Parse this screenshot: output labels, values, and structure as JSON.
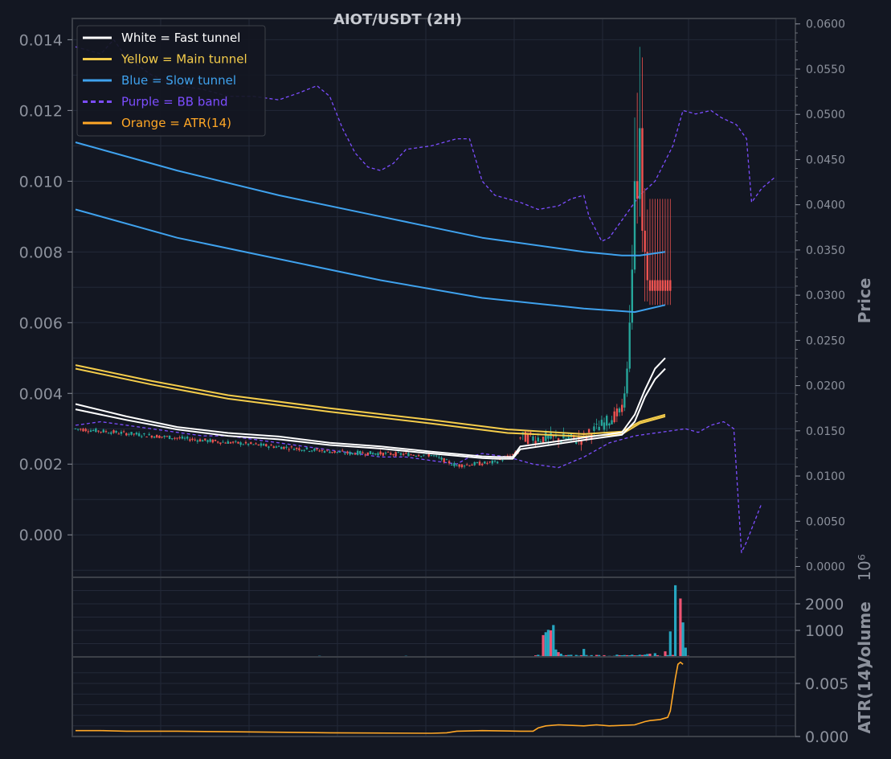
{
  "colors": {
    "background": "#131722",
    "grid": "#232938",
    "frame": "#3c4048",
    "axis_text": "#8c919c",
    "title_text": "#c8cbd2",
    "fast": "#ffffff",
    "main": "#f5cd4b",
    "slow": "#3fa2ee",
    "bb": "#7c4dff",
    "atr": "#ffa726",
    "up": "#26a69a",
    "down": "#ef5350",
    "volume_up": "#26a6c0",
    "volume_down": "#ef5373"
  },
  "chart_data": {
    "type": "candlestick",
    "title": "AIOT/USDT (2H)",
    "legend": {
      "placement": "top-left",
      "entries": [
        {
          "label": "White = Fast tunnel",
          "color": "#ffffff",
          "style": "solid"
        },
        {
          "label": "Yellow = Main tunnel",
          "color": "#f5cd4b",
          "style": "solid"
        },
        {
          "label": "Blue = Slow tunnel",
          "color": "#3fa2ee",
          "style": "solid"
        },
        {
          "label": "Purple = BB band",
          "color": "#7c4dff",
          "style": "dashed"
        },
        {
          "label": "Orange = ATR(14)",
          "color": "#ffa726",
          "style": "solid"
        }
      ]
    },
    "grid": true,
    "n_bars": 180,
    "price_panel": {
      "left_axis": {
        "ylim": [
          -0.0012,
          0.0146
        ],
        "ticks": [
          "0.000",
          "0.002",
          "0.004",
          "0.006",
          "0.008",
          "0.010",
          "0.012",
          "0.014"
        ],
        "tick_values": [
          0,
          0.002,
          0.004,
          0.006,
          0.008,
          0.01,
          0.012,
          0.014
        ]
      },
      "right_axis": {
        "ylabel": "Price",
        "ylim": [
          -0.0012,
          0.0606
        ],
        "ticks": [
          "0.0000",
          "0.0050",
          "0.0100",
          "0.0150",
          "0.0200",
          "0.0250",
          "0.0300",
          "0.0350",
          "0.0400",
          "0.0450",
          "0.0500",
          "0.0550",
          "0.0600"
        ],
        "tick_values": [
          0,
          0.005,
          0.01,
          0.015,
          0.02,
          0.025,
          0.03,
          0.035,
          0.04,
          0.045,
          0.05,
          0.055,
          0.06
        ]
      },
      "fast_tunnel": [
        {
          "points": [
            [
              0,
              0.0037
            ],
            [
              20,
              0.00335
            ],
            [
              40,
              0.00305
            ],
            [
              60,
              0.00288
            ],
            [
              80,
              0.00278
            ],
            [
              100,
              0.0026
            ],
            [
              120,
              0.0025
            ],
            [
              140,
              0.00235
            ],
            [
              160,
              0.00222
            ],
            [
              166,
              0.0022
            ],
            [
              172,
              0.0022
            ],
            [
              175,
              0.0025
            ],
            [
              200,
              0.00275
            ],
            [
              215,
              0.0029
            ],
            [
              220,
              0.0034
            ],
            [
              224,
              0.0041
            ],
            [
              228,
              0.0047
            ],
            [
              232,
              0.005
            ]
          ]
        },
        {
          "points": [
            [
              0,
              0.00355
            ],
            [
              20,
              0.00325
            ],
            [
              40,
              0.00298
            ],
            [
              60,
              0.0028
            ],
            [
              80,
              0.0027
            ],
            [
              100,
              0.00254
            ],
            [
              120,
              0.00244
            ],
            [
              140,
              0.0023
            ],
            [
              160,
              0.00217
            ],
            [
              166,
              0.00215
            ],
            [
              172,
              0.00215
            ],
            [
              175,
              0.00242
            ],
            [
              200,
              0.00268
            ],
            [
              215,
              0.00283
            ],
            [
              220,
              0.0032
            ],
            [
              224,
              0.0039
            ],
            [
              228,
              0.0044
            ],
            [
              232,
              0.0047
            ]
          ]
        }
      ],
      "main_tunnel": [
        {
          "points": [
            [
              0,
              0.0048
            ],
            [
              30,
              0.00435
            ],
            [
              60,
              0.00395
            ],
            [
              100,
              0.00358
            ],
            [
              140,
              0.00325
            ],
            [
              170,
              0.00298
            ],
            [
              200,
              0.00285
            ],
            [
              215,
              0.00292
            ],
            [
              222,
              0.0032
            ],
            [
              232,
              0.0034
            ]
          ]
        },
        {
          "points": [
            [
              0,
              0.0047
            ],
            [
              30,
              0.00425
            ],
            [
              60,
              0.00385
            ],
            [
              100,
              0.00348
            ],
            [
              140,
              0.00315
            ],
            [
              170,
              0.00288
            ],
            [
              200,
              0.00278
            ],
            [
              215,
              0.00285
            ],
            [
              222,
              0.00315
            ],
            [
              232,
              0.00335
            ]
          ]
        }
      ],
      "slow_tunnel": [
        {
          "points": [
            [
              0,
              0.0111
            ],
            [
              40,
              0.0103
            ],
            [
              80,
              0.0096
            ],
            [
              120,
              0.009
            ],
            [
              160,
              0.0084
            ],
            [
              200,
              0.008
            ],
            [
              215,
              0.0079
            ],
            [
              222,
              0.0079
            ],
            [
              232,
              0.008
            ]
          ]
        },
        {
          "points": [
            [
              0,
              0.0092
            ],
            [
              40,
              0.0084
            ],
            [
              80,
              0.0078
            ],
            [
              120,
              0.0072
            ],
            [
              160,
              0.0067
            ],
            [
              200,
              0.0064
            ],
            [
              220,
              0.0063
            ],
            [
              232,
              0.0065
            ]
          ]
        }
      ],
      "bb_upper": [
        [
          0,
          0.0138
        ],
        [
          5,
          0.0137
        ],
        [
          10,
          0.0136
        ],
        [
          15,
          0.014
        ],
        [
          20,
          0.0135
        ],
        [
          30,
          0.013
        ],
        [
          40,
          0.0127
        ],
        [
          50,
          0.0126
        ],
        [
          60,
          0.0124
        ],
        [
          70,
          0.0124
        ],
        [
          80,
          0.0123
        ],
        [
          88,
          0.0125
        ],
        [
          95,
          0.0127
        ],
        [
          100,
          0.0124
        ],
        [
          105,
          0.0115
        ],
        [
          110,
          0.0108
        ],
        [
          115,
          0.0104
        ],
        [
          120,
          0.0103
        ],
        [
          125,
          0.0105
        ],
        [
          130,
          0.0109
        ],
        [
          140,
          0.011
        ],
        [
          150,
          0.0112
        ],
        [
          155,
          0.0112
        ],
        [
          160,
          0.01
        ],
        [
          165,
          0.0096
        ],
        [
          170,
          0.0095
        ],
        [
          175,
          0.0094
        ],
        [
          182,
          0.0092
        ],
        [
          190,
          0.0093
        ],
        [
          195,
          0.0095
        ],
        [
          200,
          0.0096
        ],
        [
          202,
          0.009
        ],
        [
          207,
          0.0083
        ],
        [
          210,
          0.0084
        ],
        [
          215,
          0.0089
        ],
        [
          222,
          0.0096
        ],
        [
          228,
          0.01
        ],
        [
          235,
          0.011
        ],
        [
          239,
          0.012
        ],
        [
          244,
          0.0119
        ],
        [
          250,
          0.012
        ],
        [
          254,
          0.0118
        ],
        [
          260,
          0.0116
        ],
        [
          264,
          0.0112
        ],
        [
          266,
          0.0094
        ],
        [
          270,
          0.0098
        ],
        [
          275,
          0.0101
        ]
      ],
      "bb_lower": [
        [
          0,
          0.0031
        ],
        [
          10,
          0.0032
        ],
        [
          20,
          0.0031
        ],
        [
          30,
          0.003
        ],
        [
          40,
          0.0029
        ],
        [
          50,
          0.0028
        ],
        [
          60,
          0.0028
        ],
        [
          70,
          0.0027
        ],
        [
          80,
          0.0026
        ],
        [
          90,
          0.0025
        ],
        [
          100,
          0.0024
        ],
        [
          110,
          0.0023
        ],
        [
          120,
          0.0022
        ],
        [
          130,
          0.0022
        ],
        [
          140,
          0.0021
        ],
        [
          150,
          0.002
        ],
        [
          155,
          0.0022
        ],
        [
          160,
          0.0023
        ],
        [
          170,
          0.0022
        ],
        [
          180,
          0.002
        ],
        [
          190,
          0.0019
        ],
        [
          200,
          0.0022
        ],
        [
          210,
          0.0026
        ],
        [
          220,
          0.0028
        ],
        [
          230,
          0.0029
        ],
        [
          240,
          0.003
        ],
        [
          245,
          0.0029
        ],
        [
          250,
          0.0031
        ],
        [
          255,
          0.0032
        ],
        [
          259,
          0.003
        ],
        [
          262,
          -0.0005
        ],
        [
          264,
          -0.0002
        ],
        [
          270,
          0.0009
        ]
      ],
      "candles_note": "approximate OHLC: ~0.003 drifting to ~0.0019, base ~0.0027 from bar 175, breakout to ~0.0115 near bar 208-210 then ~0.007"
    },
    "volume_panel": {
      "ylabel": "Volume",
      "scale_label": "1e6",
      "ylim": [
        0,
        3000
      ],
      "ticks": [
        "1000",
        "2000"
      ],
      "tick_values": [
        1000,
        2000
      ],
      "values_note": "values in millions: low near zero until bar ~184, spikes ~800-1200 at bars 184-189, spike ~2700 at bar 236"
    },
    "atr_panel": {
      "ylabel": "ATR(14)",
      "ylim": [
        0,
        0.0075
      ],
      "ticks": [
        "0.000",
        "0.005"
      ],
      "tick_values": [
        0,
        0.005
      ],
      "values_note": "about 0.0005 until bar ~150, ~0.001 after bar 185, rising to ~0.0068 at bar 236"
    }
  }
}
